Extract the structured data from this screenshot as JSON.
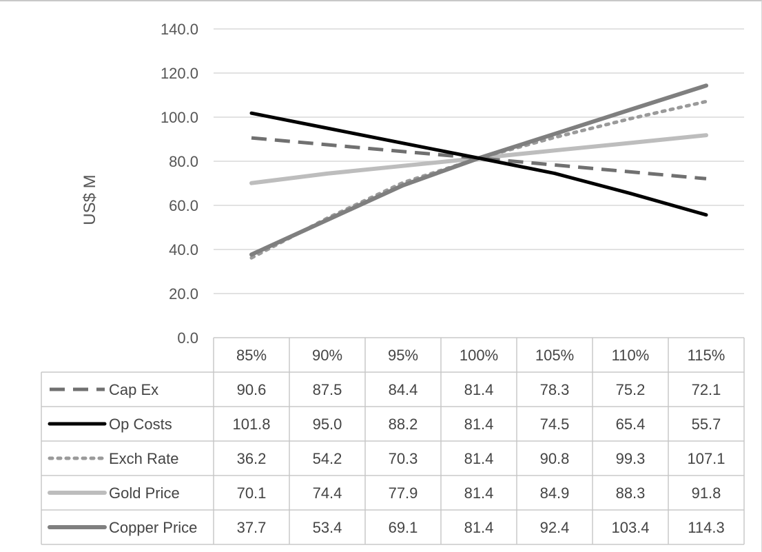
{
  "chart_data": {
    "type": "line",
    "ylabel": "US$ M",
    "xlabel": "",
    "title": "",
    "ylim": [
      0,
      140
    ],
    "yticks": [
      "0.0",
      "20.0",
      "40.0",
      "60.0",
      "80.0",
      "100.0",
      "120.0",
      "140.0"
    ],
    "categories": [
      "85%",
      "90%",
      "95%",
      "100%",
      "105%",
      "110%",
      "115%"
    ],
    "grid": true,
    "legend": "data-table-below",
    "series": [
      {
        "name": "Cap Ex",
        "style": "dashed",
        "color": "#707070",
        "values": [
          "90.6",
          "87.5",
          "84.4",
          "81.4",
          "78.3",
          "75.2",
          "72.1"
        ]
      },
      {
        "name": "Op Costs",
        "style": "solid",
        "color": "#000000",
        "values": [
          "101.8",
          "95.0",
          "88.2",
          "81.4",
          "74.5",
          "65.4",
          "55.7"
        ]
      },
      {
        "name": "Exch Rate",
        "style": "dotted",
        "color": "#9a9a9a",
        "values": [
          "36.2",
          "54.2",
          "70.3",
          "81.4",
          "90.8",
          "99.3",
          "107.1"
        ]
      },
      {
        "name": "Gold Price",
        "style": "solid",
        "color": "#bdbdbd",
        "values": [
          "70.1",
          "74.4",
          "77.9",
          "81.4",
          "84.9",
          "88.3",
          "91.8"
        ]
      },
      {
        "name": "Copper Price",
        "style": "solid",
        "color": "#7f7f7f",
        "values": [
          "37.7",
          "53.4",
          "69.1",
          "81.4",
          "92.4",
          "103.4",
          "114.3"
        ]
      }
    ]
  }
}
